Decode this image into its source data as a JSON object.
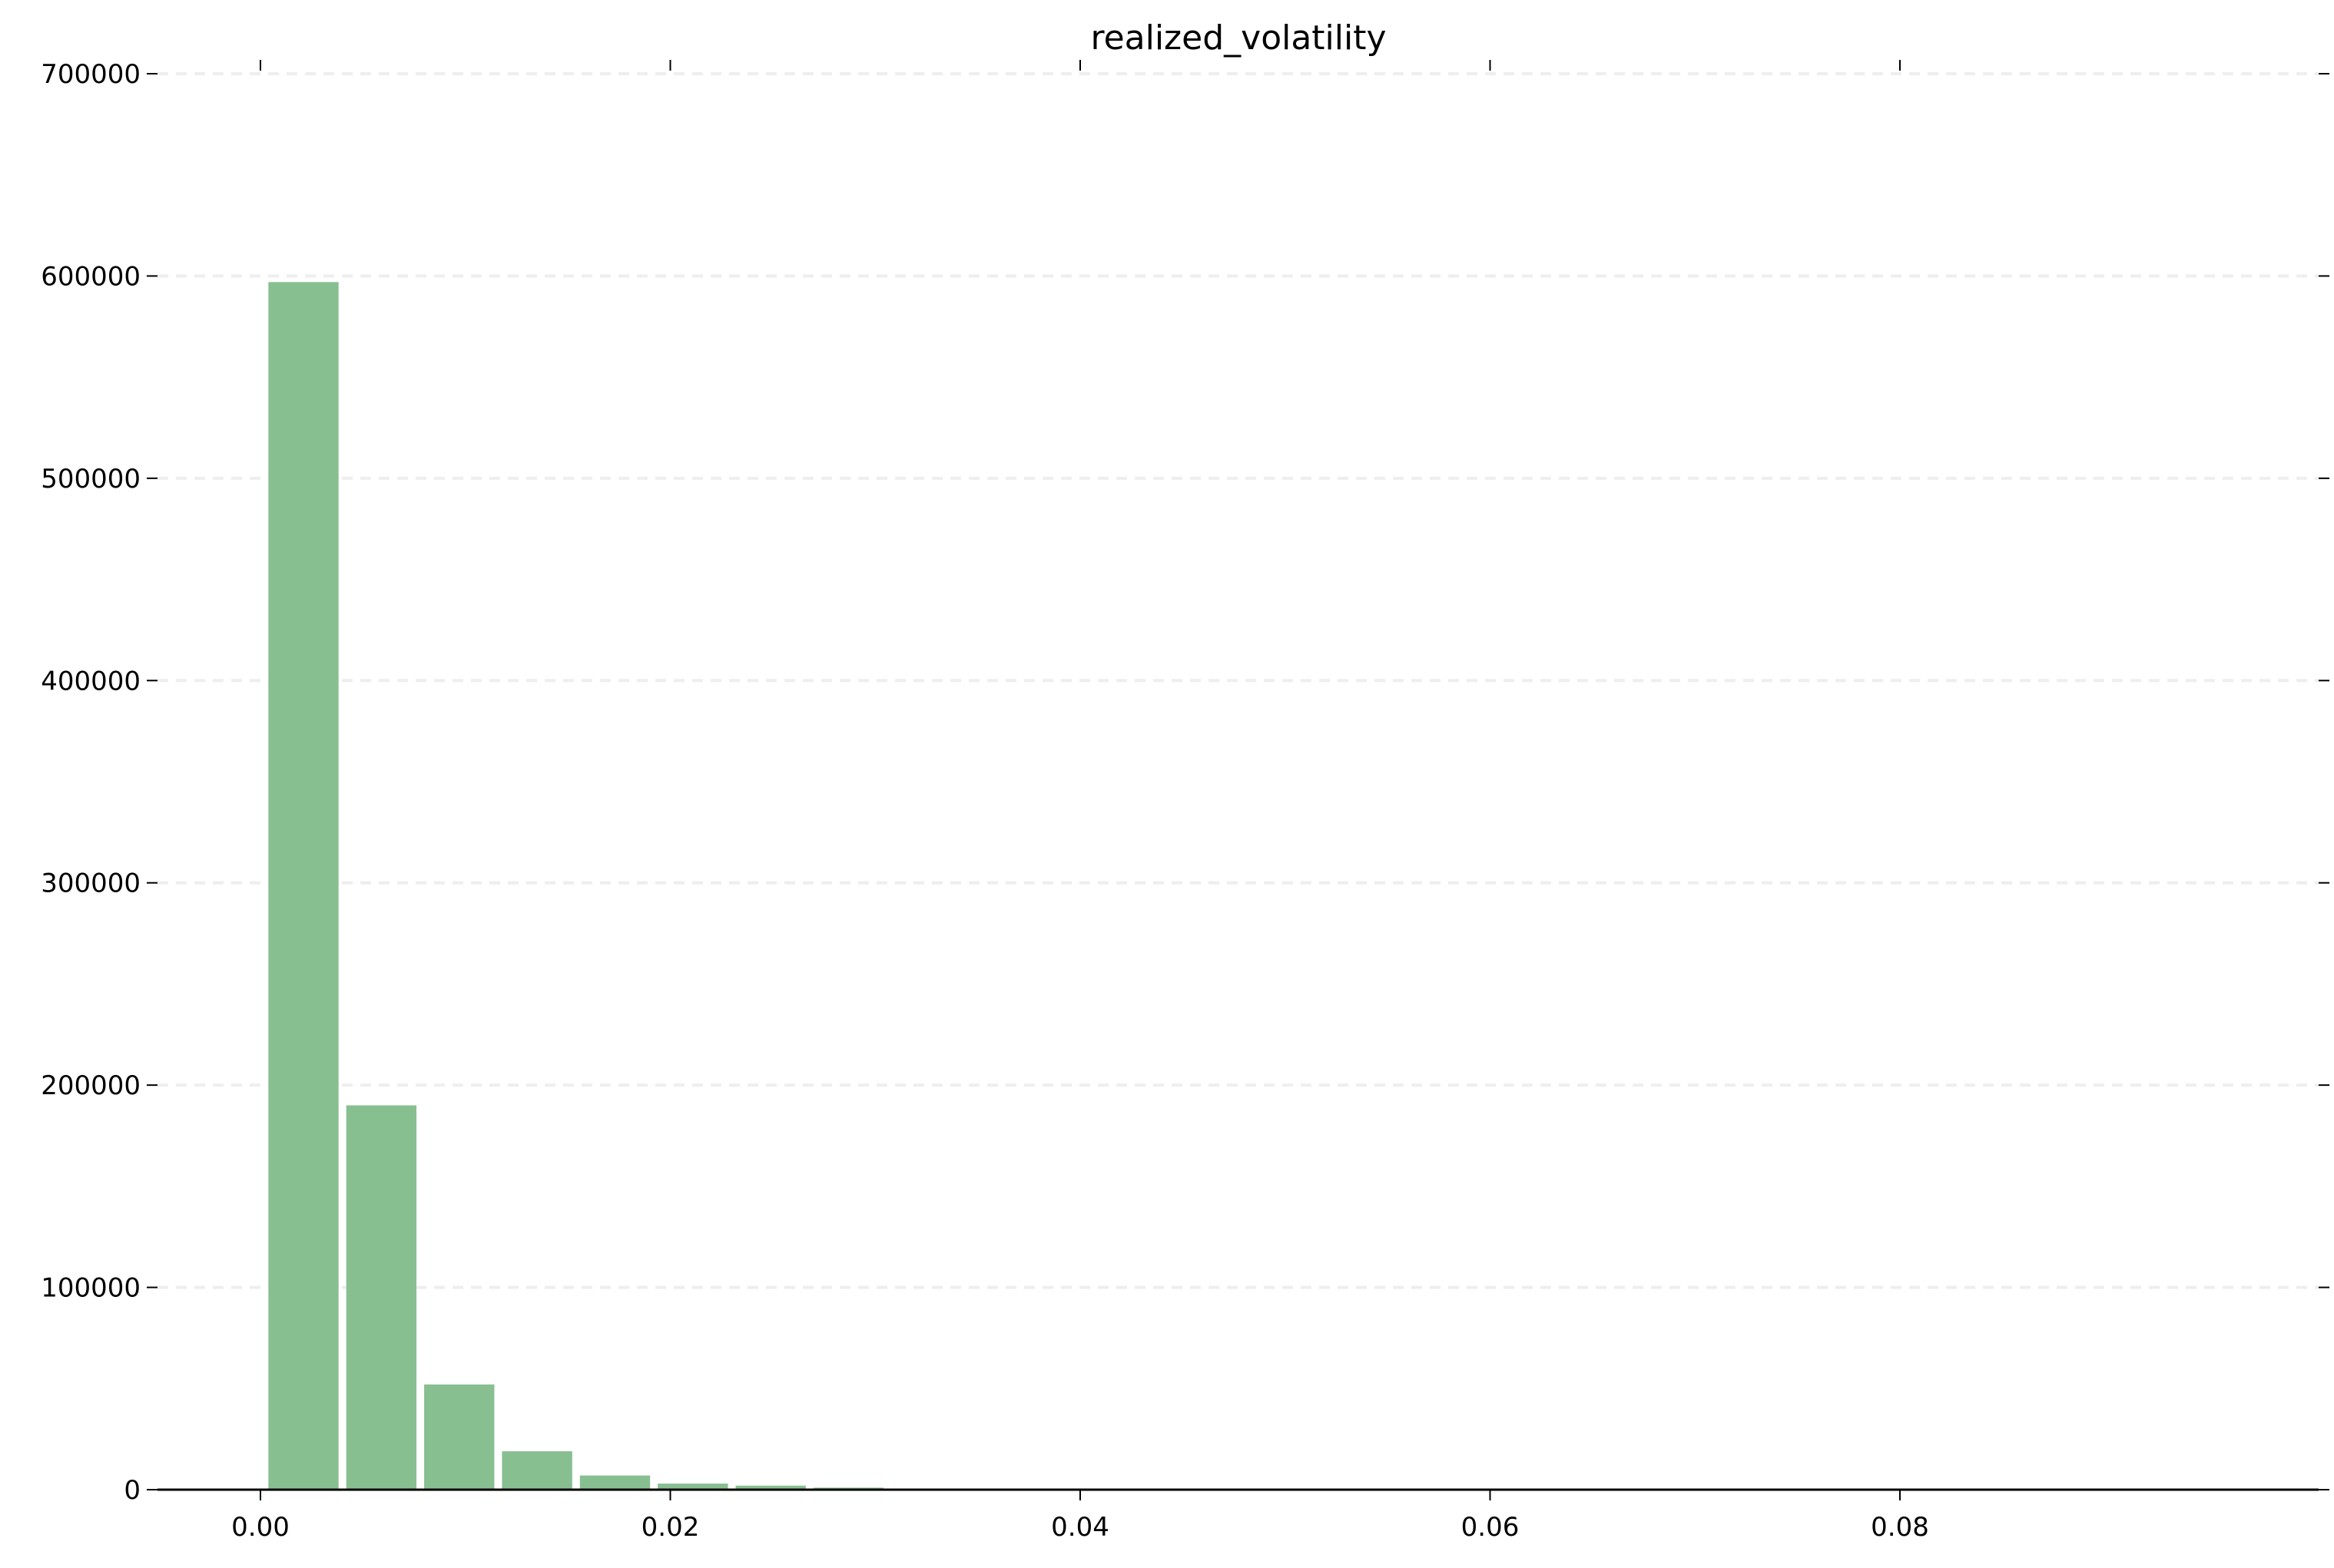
{
  "chart_data": {
    "type": "bar",
    "title": "realized_volatility",
    "xlabel": "",
    "ylabel": "",
    "x_ticks": [
      "0.00",
      "0.02",
      "0.04",
      "0.06",
      "0.08"
    ],
    "y_ticks": [
      "0",
      "100000",
      "200000",
      "300000",
      "400000",
      "500000",
      "600000",
      "700000"
    ],
    "xlim": [
      -0.005,
      0.1
    ],
    "ylim": [
      0,
      700000
    ],
    "bin_width": 0.0038,
    "bins": [
      {
        "x_start": 0.0002,
        "value": 597000
      },
      {
        "x_start": 0.004,
        "value": 190000
      },
      {
        "x_start": 0.0078,
        "value": 52000
      },
      {
        "x_start": 0.0116,
        "value": 19000
      },
      {
        "x_start": 0.0154,
        "value": 7000
      },
      {
        "x_start": 0.0192,
        "value": 3000
      },
      {
        "x_start": 0.023,
        "value": 2000
      },
      {
        "x_start": 0.0268,
        "value": 1000
      },
      {
        "x_start": 0.0306,
        "value": 400
      },
      {
        "x_start": 0.0344,
        "value": 150
      }
    ],
    "bar_color": "#88bf91",
    "grid": "horizontal dashed",
    "grid_color": "#eeeeee",
    "legend": "none"
  }
}
